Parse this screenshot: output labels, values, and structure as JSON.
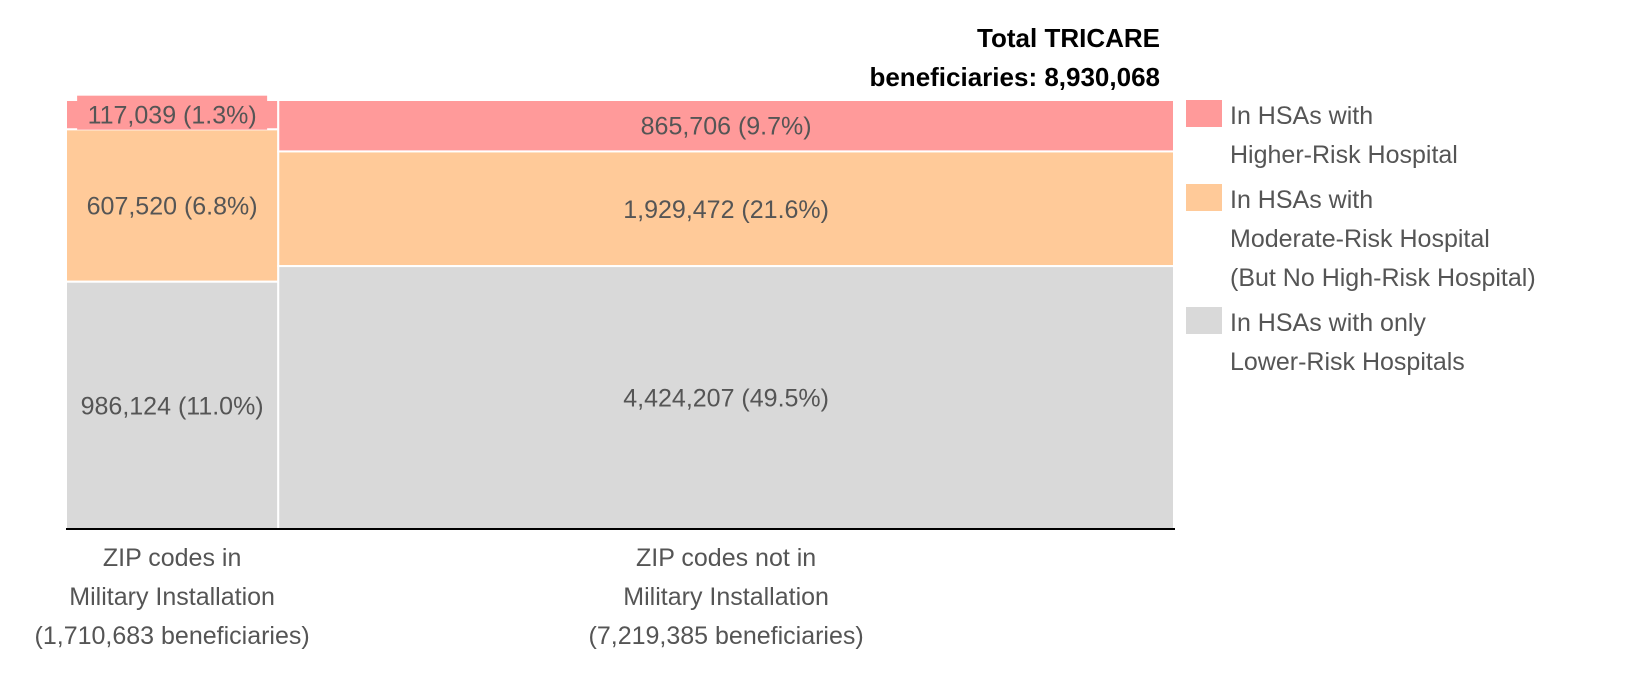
{
  "chart_data": {
    "type": "mosaic",
    "total_title_lines": [
      "Total TRICARE",
      "beneficiaries: 8,930,068"
    ],
    "total_beneficiaries": 8930068,
    "colors": {
      "higher": "#ff9a9a",
      "moderate": "#ffca99",
      "lower": "#d9d9d9",
      "axis": "#000000",
      "divider": "#ffffff"
    },
    "series": [
      {
        "key": "higher",
        "name_lines": [
          "In HSAs with",
          "Higher-Risk Hospital"
        ]
      },
      {
        "key": "moderate",
        "name_lines": [
          "In HSAs with",
          "Moderate-Risk Hospital",
          "(But No High-Risk Hospital)"
        ]
      },
      {
        "key": "lower",
        "name_lines": [
          "In HSAs with only",
          "Lower-Risk Hospitals"
        ]
      }
    ],
    "columns": [
      {
        "name_lines": [
          "ZIP codes in",
          "Military Installation",
          "(1,710,683 beneficiaries)"
        ],
        "total": 1710683,
        "segments": [
          {
            "key": "higher",
            "value": 117039,
            "label": "117,039 (1.3%)"
          },
          {
            "key": "moderate",
            "value": 607520,
            "label": "607,520 (6.8%)"
          },
          {
            "key": "lower",
            "value": 986124,
            "label": "986,124 (11.0%)"
          }
        ]
      },
      {
        "name_lines": [
          "ZIP codes not in",
          "Military Installation",
          "(7,219,385 beneficiaries)"
        ],
        "total": 7219385,
        "segments": [
          {
            "key": "higher",
            "value": 865706,
            "label": "865,706 (9.7%)"
          },
          {
            "key": "moderate",
            "value": 1929472,
            "label": "1,929,472 (21.6%)"
          },
          {
            "key": "lower",
            "value": 4424207,
            "label": "4,424,207 (49.5%)"
          }
        ]
      }
    ]
  }
}
